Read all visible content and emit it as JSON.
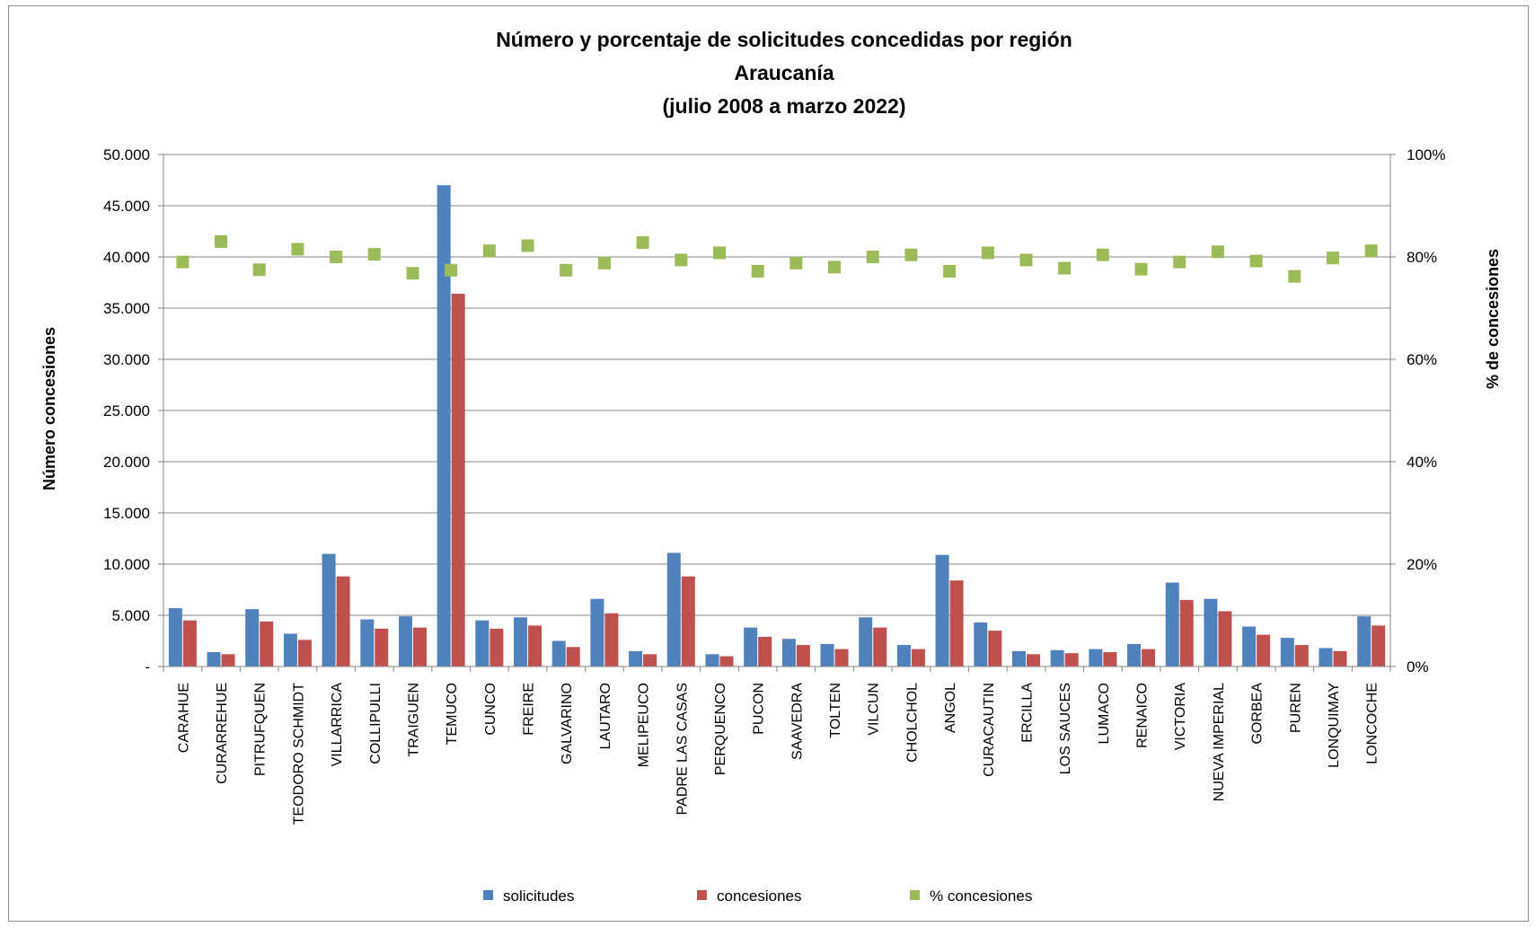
{
  "chart_data": {
    "type": "bar",
    "title_lines": [
      "Número y porcentaje de solicitudes concedidas por región",
      "Araucanía",
      "(julio 2008 a marzo 2022)"
    ],
    "ylabel": "Número concesiones",
    "y2label": "% de concesiones",
    "ylim": [
      0,
      50000
    ],
    "y2lim": [
      0,
      100
    ],
    "y_ticks": [
      "-",
      "5.000",
      "10.000",
      "15.000",
      "20.000",
      "25.000",
      "30.000",
      "35.000",
      "40.000",
      "45.000",
      "50.000"
    ],
    "y2_ticks": [
      "0%",
      "20%",
      "40%",
      "60%",
      "80%",
      "100%"
    ],
    "grid": true,
    "legend_position": "bottom",
    "categories": [
      "CARAHUE",
      "CURARREHUE",
      "PITRUFQUEN",
      "TEODORO SCHMIDT",
      "VILLARRICA",
      "COLLIPULLI",
      "TRAIGUEN",
      "TEMUCO",
      "CUNCO",
      "FREIRE",
      "GALVARINO",
      "LAUTARO",
      "MELIPEUCO",
      "PADRE LAS CASAS",
      "PERQUENCO",
      "PUCON",
      "SAAVEDRA",
      "TOLTEN",
      "VILCUN",
      "CHOLCHOL",
      "ANGOL",
      "CURACAUTIN",
      "ERCILLA",
      "LOS SAUCES",
      "LUMACO",
      "RENAICO",
      "VICTORIA",
      "NUEVA IMPERIAL",
      "GORBEA",
      "PUREN",
      "LONQUIMAY",
      "LONCOCHE"
    ],
    "series": [
      {
        "name": "solicitudes",
        "type": "bar",
        "axis": "left",
        "color": "#4f81bd",
        "values": [
          5700,
          1400,
          5600,
          3200,
          11000,
          4600,
          4900,
          47000,
          4500,
          4800,
          2500,
          6600,
          1500,
          11100,
          1200,
          3800,
          2700,
          2200,
          4800,
          2100,
          10900,
          4300,
          1500,
          1600,
          1700,
          2200,
          8200,
          6600,
          3900,
          2800,
          1800,
          4900
        ]
      },
      {
        "name": "concesiones",
        "type": "bar",
        "axis": "left",
        "color": "#c0504d",
        "values": [
          4500,
          1200,
          4400,
          2600,
          8800,
          3700,
          3800,
          36400,
          3700,
          4000,
          1900,
          5200,
          1200,
          8800,
          1000,
          2900,
          2100,
          1700,
          3800,
          1700,
          8400,
          3500,
          1200,
          1300,
          1400,
          1700,
          6500,
          5400,
          3100,
          2100,
          1500,
          4000
        ]
      },
      {
        "name": "% concesiones",
        "type": "scatter",
        "axis": "right",
        "color": "#9bbb59",
        "values": [
          79,
          83,
          77.5,
          81.5,
          80,
          80.5,
          76.8,
          77.4,
          81.2,
          82.2,
          77.4,
          78.8,
          82.8,
          79.4,
          80.8,
          77.2,
          78.8,
          78,
          80,
          80.4,
          77.2,
          80.8,
          79.4,
          77.8,
          80.4,
          77.6,
          79,
          81,
          79.2,
          76.2,
          79.8,
          81.2
        ]
      }
    ]
  }
}
